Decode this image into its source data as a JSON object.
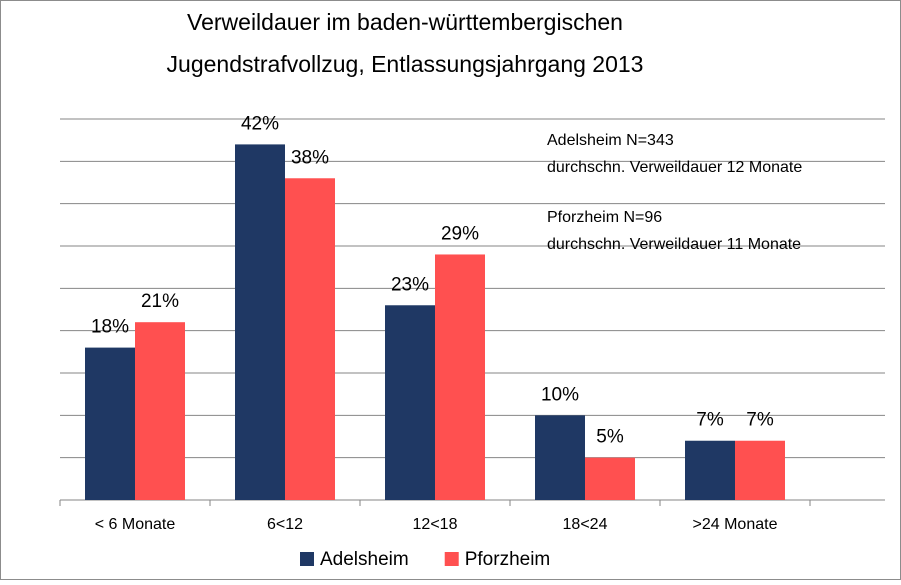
{
  "chart_data": {
    "type": "bar",
    "title": [
      "Verweildauer im baden-württembergischen",
      "Jugendstrafvollzug, Entlassungsjahrgang 2013"
    ],
    "categories": [
      "< 6 Monate",
      "6<12",
      "12<18",
      "18<24",
      ">24 Monate"
    ],
    "series": [
      {
        "name": "Adelsheim",
        "color": "#1f3864",
        "values": [
          18,
          42,
          23,
          10,
          7
        ],
        "value_labels": [
          "18%",
          "42%",
          "23%",
          "10%",
          "7%"
        ]
      },
      {
        "name": "Pforzheim",
        "color": "#ff5050",
        "values": [
          21,
          38,
          29,
          5,
          7
        ],
        "value_labels": [
          "21%",
          "38%",
          "29%",
          "5%",
          "7%"
        ]
      }
    ],
    "annotations": [
      [
        "Adelsheim N=343",
        "durchschn. Verweildauer 12 Monate"
      ],
      [
        "Pforzheim N=96",
        "durchschn. Verweildauer 11 Monate"
      ]
    ],
    "ylim": [
      0,
      45
    ],
    "yticks": [
      0,
      5,
      10,
      15,
      20,
      25,
      30,
      35,
      40,
      45
    ],
    "grid": true,
    "legend": "bottom"
  }
}
